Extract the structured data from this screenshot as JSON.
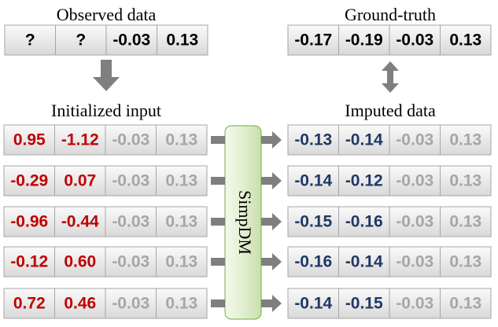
{
  "observed": {
    "title": "Observed data",
    "cells": [
      "?",
      "?",
      "-0.03",
      "0.13"
    ]
  },
  "ground_truth": {
    "title": "Ground-truth",
    "cells": [
      "-0.17",
      "-0.19",
      "-0.03",
      "0.13"
    ]
  },
  "initialized": {
    "title": "Initialized input",
    "rows": [
      [
        "0.95",
        "-1.12",
        "-0.03",
        "0.13"
      ],
      [
        "-0.29",
        "0.07",
        "-0.03",
        "0.13"
      ],
      [
        "-0.96",
        "-0.44",
        "-0.03",
        "0.13"
      ],
      [
        "-0.12",
        "0.60",
        "-0.03",
        "0.13"
      ],
      [
        "0.72",
        "0.46",
        "-0.03",
        "0.13"
      ]
    ]
  },
  "imputed": {
    "title": "Imputed data",
    "rows": [
      [
        "-0.13",
        "-0.14",
        "-0.03",
        "0.13"
      ],
      [
        "-0.14",
        "-0.12",
        "-0.03",
        "0.13"
      ],
      [
        "-0.15",
        "-0.16",
        "-0.03",
        "0.13"
      ],
      [
        "-0.16",
        "-0.14",
        "-0.03",
        "0.13"
      ],
      [
        "-0.14",
        "-0.15",
        "-0.03",
        "0.13"
      ]
    ]
  },
  "model": {
    "label": "SimpDM"
  }
}
